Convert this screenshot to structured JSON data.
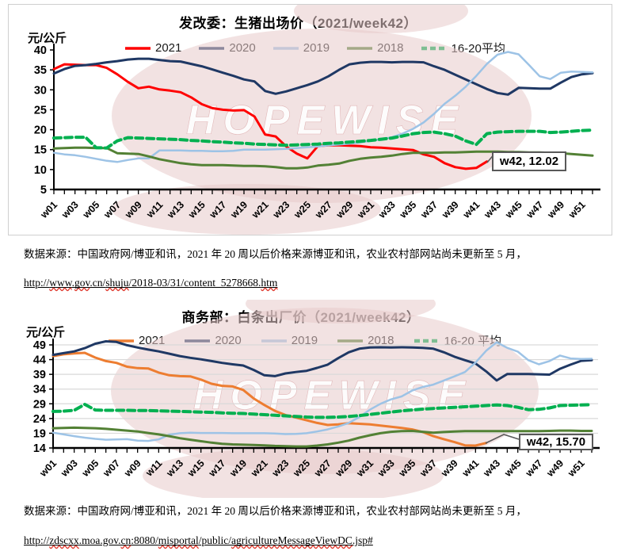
{
  "notes": [
    {
      "text": "数据来源：中国政府网/博亚和讯，2021 年 20 周以后价格来源博亚和讯，农业农村部网站尚未更新至 5 月，",
      "url_segments": [
        {
          "t": "http://"
        },
        {
          "t": "www",
          "w": 1
        },
        {
          "t": "."
        },
        {
          "t": "gov",
          "w": 1
        },
        {
          "t": ".cn/"
        },
        {
          "t": "shuju",
          "w": 1
        },
        {
          "t": "/2018-03/31/content_5278668."
        },
        {
          "t": "htm",
          "w": 1
        }
      ]
    },
    {
      "text": "数据来源：中国政府网/博亚和讯，2021 年 20 周以后价格来源博亚和讯，农业农村部网站尚未更新至 5 月，",
      "url_segments": [
        {
          "t": "http://"
        },
        {
          "t": "zdscxx",
          "w": 1
        },
        {
          "t": ".moa.gov."
        },
        {
          "t": "cn",
          "w": 1
        },
        {
          "t": ":8080/"
        },
        {
          "t": "misportal",
          "w": 1
        },
        {
          "t": "/public/"
        },
        {
          "t": "agricultureMessageViewDC",
          "w": 1
        },
        {
          "t": ".jsp#"
        }
      ]
    }
  ],
  "chart_data": [
    {
      "type": "line",
      "title": "发改委：生猪出场价（2021/week42）",
      "unit_label": "元/公斤",
      "watermark_text": "HOPEWISE",
      "ylim": [
        5,
        40
      ],
      "y_ticks": [
        40,
        35,
        30,
        25,
        20,
        15,
        10,
        5
      ],
      "grid": false,
      "x_tick_labels": [
        "w01",
        "w03",
        "w05",
        "w07",
        "w09",
        "w11",
        "w13",
        "w15",
        "w17",
        "w19",
        "w21",
        "w23",
        "w25",
        "w27",
        "w29",
        "w31",
        "w33",
        "w35",
        "w37",
        "w39",
        "w41",
        "w43",
        "w45",
        "w47",
        "w49",
        "w51"
      ],
      "legend": [
        {
          "label": "2021",
          "color": "#ff0000",
          "dash": false
        },
        {
          "label": "2020",
          "color": "#1f3864",
          "dash": false
        },
        {
          "label": "2019",
          "color": "#9dc3e6",
          "dash": false
        },
        {
          "label": "2018",
          "color": "#538135",
          "dash": false
        },
        {
          "label": "16-20平均",
          "color": "#00b050",
          "dash": true
        }
      ],
      "annotation": {
        "label": "w42, 12.02",
        "week": 42,
        "value": 12.02
      },
      "series": [
        {
          "name": "2021",
          "color": "#ff0000",
          "width": 3,
          "dash": false,
          "values": [
            35.2,
            36.4,
            36.3,
            36.2,
            36.2,
            35.5,
            33.9,
            32.0,
            30.4,
            30.8,
            30.1,
            29.8,
            29.4,
            28.1,
            26.4,
            25.4,
            25.0,
            24.8,
            24.9,
            23.3,
            18.8,
            18.3,
            15.8,
            14.0,
            12.8,
            15.9,
            16.1,
            16.1,
            16.0,
            15.9,
            15.6,
            15.5,
            15.3,
            15.1,
            14.9,
            13.8,
            13.2,
            11.6,
            10.6,
            10.2,
            10.4,
            12.02
          ]
        },
        {
          "name": "2020",
          "color": "#1f3864",
          "width": 3,
          "dash": false,
          "values": [
            34.1,
            35.2,
            36.0,
            36.2,
            36.5,
            36.9,
            37.2,
            37.6,
            37.8,
            37.8,
            37.5,
            37.2,
            37.1,
            36.5,
            35.9,
            35.1,
            34.3,
            33.5,
            32.6,
            32.1,
            29.7,
            29.0,
            29.6,
            30.4,
            31.2,
            32.1,
            33.4,
            35.0,
            36.4,
            36.8,
            37.0,
            37.0,
            36.9,
            37.0,
            37.0,
            36.9,
            35.9,
            35.0,
            33.8,
            32.6,
            31.4,
            30.2,
            29.2,
            28.8,
            30.5,
            30.4,
            30.3,
            30.3,
            31.8,
            33.2,
            33.9,
            34.2
          ]
        },
        {
          "name": "2019",
          "color": "#9dc3e6",
          "width": 2.5,
          "dash": false,
          "values": [
            14.2,
            13.8,
            13.6,
            13.2,
            12.7,
            12.2,
            11.9,
            12.4,
            12.8,
            12.8,
            14.8,
            14.8,
            14.8,
            14.7,
            14.7,
            14.6,
            14.6,
            14.7,
            15.0,
            15.0,
            15.0,
            15.1,
            15.2,
            15.4,
            15.6,
            15.8,
            16.1,
            16.3,
            16.5,
            16.8,
            17.2,
            17.6,
            18.1,
            19.0,
            20.2,
            21.8,
            24.0,
            26.5,
            28.5,
            30.8,
            33.5,
            36.5,
            38.8,
            39.5,
            38.9,
            36.2,
            33.4,
            32.7,
            34.3,
            34.6,
            34.5,
            34.4
          ]
        },
        {
          "name": "2018",
          "color": "#538135",
          "width": 3,
          "dash": false,
          "values": [
            15.3,
            15.4,
            15.5,
            15.5,
            15.4,
            15.4,
            14.1,
            14.0,
            13.9,
            13.3,
            12.6,
            12.1,
            11.6,
            11.3,
            11.1,
            11.1,
            11.1,
            11.0,
            10.9,
            10.9,
            10.8,
            10.6,
            10.3,
            10.3,
            10.5,
            11.0,
            11.2,
            11.5,
            12.2,
            12.7,
            13.0,
            13.2,
            13.5,
            13.9,
            14.2,
            14.2,
            14.2,
            14.3,
            14.3,
            14.4,
            14.5,
            14.5,
            14.5,
            14.4,
            14.4,
            14.3,
            14.3,
            14.2,
            14.1,
            13.9,
            13.7,
            13.5
          ]
        },
        {
          "name": "16-20平均",
          "color": "#00b050",
          "width": 4,
          "dash": true,
          "values": [
            17.9,
            18.0,
            18.1,
            18.1,
            15.5,
            15.4,
            17.2,
            18.0,
            17.9,
            17.8,
            17.7,
            17.6,
            17.5,
            17.3,
            17.2,
            17.0,
            16.9,
            16.7,
            16.6,
            16.4,
            16.3,
            16.2,
            16.1,
            16.2,
            16.3,
            16.4,
            16.6,
            16.7,
            16.9,
            17.1,
            17.3,
            17.6,
            17.9,
            18.4,
            19.0,
            19.3,
            19.4,
            19.0,
            18.4,
            17.2,
            16.3,
            19.0,
            19.4,
            19.5,
            19.6,
            19.6,
            19.6,
            19.3,
            19.4,
            19.6,
            19.8,
            19.9
          ]
        }
      ]
    },
    {
      "type": "line",
      "title": "商务部：白条出厂价（2021/week42）",
      "unit_label": "元/公斤",
      "watermark_text": "HOPEWISE",
      "ylim": [
        14,
        49
      ],
      "y_ticks": [
        49,
        44,
        39,
        34,
        29,
        24,
        19,
        14
      ],
      "grid": true,
      "x_tick_labels": [
        "w01",
        "w03",
        "w05",
        "w07",
        "w09",
        "w11",
        "w13",
        "w15",
        "w17",
        "w19",
        "w21",
        "w23",
        "w25",
        "w27",
        "w29",
        "w31",
        "w33",
        "w35",
        "w37",
        "w39",
        "w41",
        "w43",
        "w45",
        "w47",
        "w49",
        "w51"
      ],
      "legend": [
        {
          "label": "2021",
          "color": "#ed7d31",
          "dash": false
        },
        {
          "label": "2020",
          "color": "#1f3864",
          "dash": false
        },
        {
          "label": "2019",
          "color": "#9dc3e6",
          "dash": false
        },
        {
          "label": "2018",
          "color": "#538135",
          "dash": false
        },
        {
          "label": "16-20 平均",
          "color": "#00b050",
          "dash": true
        }
      ],
      "annotation": {
        "label": "w42, 15.70",
        "week": 42,
        "value": 15.7
      },
      "series": [
        {
          "name": "2021",
          "color": "#ed7d31",
          "width": 3,
          "dash": false,
          "values": [
            45.2,
            45.8,
            46.1,
            46.3,
            44.7,
            43.5,
            42.9,
            41.6,
            41.1,
            41.0,
            39.6,
            38.7,
            38.4,
            38.3,
            37.2,
            35.8,
            35.1,
            34.9,
            33.7,
            30.8,
            28.6,
            26.6,
            25.2,
            24.3,
            23.4,
            22.5,
            21.8,
            22.0,
            22.4,
            22.2,
            22.0,
            21.6,
            21.2,
            20.8,
            20.3,
            19.4,
            18.0,
            17.0,
            16.0,
            14.9,
            14.8,
            15.7
          ]
        },
        {
          "name": "2020",
          "color": "#1f3864",
          "width": 3,
          "dash": false,
          "values": [
            45.6,
            46.2,
            46.8,
            47.9,
            49.4,
            50.2,
            50.0,
            48.9,
            48.1,
            47.4,
            46.8,
            46.0,
            45.2,
            44.6,
            44.1,
            43.5,
            42.9,
            42.4,
            42.0,
            40.5,
            38.7,
            38.4,
            39.3,
            39.8,
            40.2,
            41.2,
            42.3,
            44.5,
            46.5,
            47.7,
            48.1,
            48.2,
            48.1,
            48.2,
            48.1,
            48.0,
            47.7,
            46.5,
            45.0,
            43.8,
            42.7,
            40.0,
            36.9,
            39.1,
            39.1,
            39.1,
            39.0,
            38.9,
            40.9,
            42.3,
            43.6,
            43.8
          ]
        },
        {
          "name": "2019",
          "color": "#9dc3e6",
          "width": 2.5,
          "dash": false,
          "values": [
            19.2,
            18.6,
            18.0,
            17.5,
            17.1,
            16.8,
            16.9,
            17.0,
            16.5,
            16.4,
            16.9,
            18.5,
            19.0,
            19.2,
            19.1,
            19.1,
            19.1,
            19.0,
            19.0,
            19.0,
            19.0,
            18.9,
            18.7,
            18.8,
            19.0,
            19.6,
            20.3,
            21.3,
            22.5,
            24.5,
            27.0,
            29.0,
            30.5,
            31.5,
            33.5,
            34.7,
            35.5,
            36.9,
            38.3,
            39.8,
            43.0,
            47.0,
            49.9,
            48.0,
            46.7,
            43.8,
            42.4,
            43.5,
            45.4,
            44.4,
            44.2,
            44.3
          ]
        },
        {
          "name": "2018",
          "color": "#538135",
          "width": 3,
          "dash": false,
          "values": [
            20.7,
            20.8,
            20.9,
            20.8,
            20.7,
            20.5,
            20.2,
            19.9,
            19.6,
            19.1,
            18.6,
            18.0,
            17.3,
            16.8,
            16.3,
            15.8,
            15.4,
            15.2,
            15.1,
            15.0,
            14.9,
            14.7,
            14.6,
            14.5,
            14.5,
            14.8,
            15.2,
            15.8,
            16.5,
            17.5,
            18.3,
            19.0,
            19.5,
            19.7,
            19.8,
            19.5,
            19.2,
            19.4,
            19.6,
            19.7,
            19.7,
            19.7,
            19.7,
            19.7,
            19.7,
            19.7,
            19.7,
            19.8,
            19.9,
            19.9,
            19.8,
            19.8
          ]
        },
        {
          "name": "16-20 平均",
          "color": "#00b050",
          "width": 4,
          "dash": true,
          "values": [
            26.4,
            26.5,
            26.8,
            28.8,
            26.9,
            26.8,
            26.8,
            26.8,
            26.7,
            26.7,
            26.6,
            26.5,
            26.4,
            26.3,
            26.2,
            26.1,
            25.9,
            25.8,
            25.7,
            25.5,
            25.3,
            25.1,
            24.9,
            24.7,
            24.5,
            24.4,
            24.4,
            24.5,
            24.7,
            25.0,
            25.4,
            25.8,
            26.2,
            26.6,
            26.9,
            27.2,
            27.4,
            27.6,
            27.8,
            28.0,
            28.2,
            28.4,
            28.6,
            28.4,
            27.8,
            27.0,
            27.1,
            27.6,
            28.4,
            28.5,
            28.6,
            28.7
          ]
        }
      ]
    }
  ]
}
